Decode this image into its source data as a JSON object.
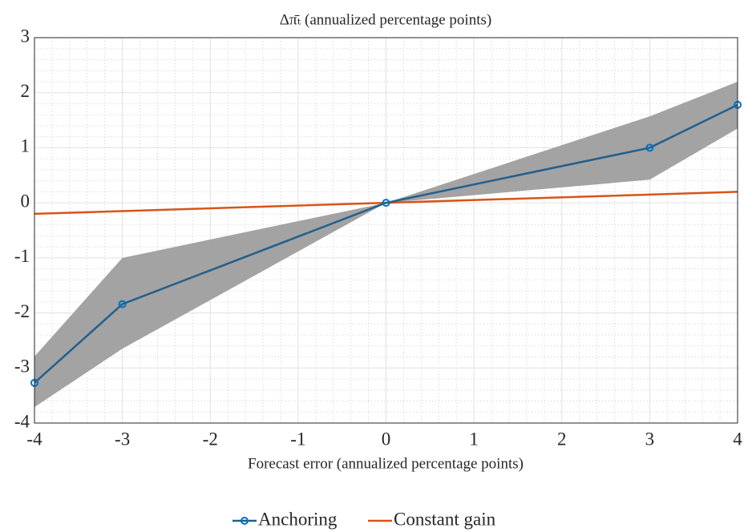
{
  "chart_data": {
    "type": "line",
    "title": "Δπ̄ₜ (annualized percentage points)",
    "x_label": "Forecast error (annualized percentage points)",
    "x": [
      -4,
      -3,
      0,
      3,
      4
    ],
    "series": [
      {
        "name": "Anchoring",
        "color": "#235f8c",
        "marker_color": "#0072bd",
        "marker": "o",
        "values": [
          -3.27,
          -1.84,
          0,
          1.0,
          1.78
        ]
      },
      {
        "name": "Constant gain",
        "color": "#d95319",
        "values": [
          -0.2,
          -0.15,
          0,
          0.15,
          0.2
        ]
      }
    ],
    "band": {
      "color": "#a3a3a3",
      "upper": [
        -2.79,
        -1.0,
        0,
        1.57,
        2.2
      ],
      "lower": [
        -3.71,
        -2.65,
        0,
        0.42,
        1.35
      ]
    },
    "xlim": [
      -4,
      4
    ],
    "xticks": [
      -4,
      -3,
      -2,
      -1,
      0,
      1,
      2,
      3,
      4
    ],
    "ylim": [
      -4,
      3
    ],
    "yticks": [
      -4,
      -3,
      -2,
      -1,
      0,
      1,
      2,
      3
    ],
    "grid": true,
    "minor_grid": true,
    "legend": "bottom"
  }
}
